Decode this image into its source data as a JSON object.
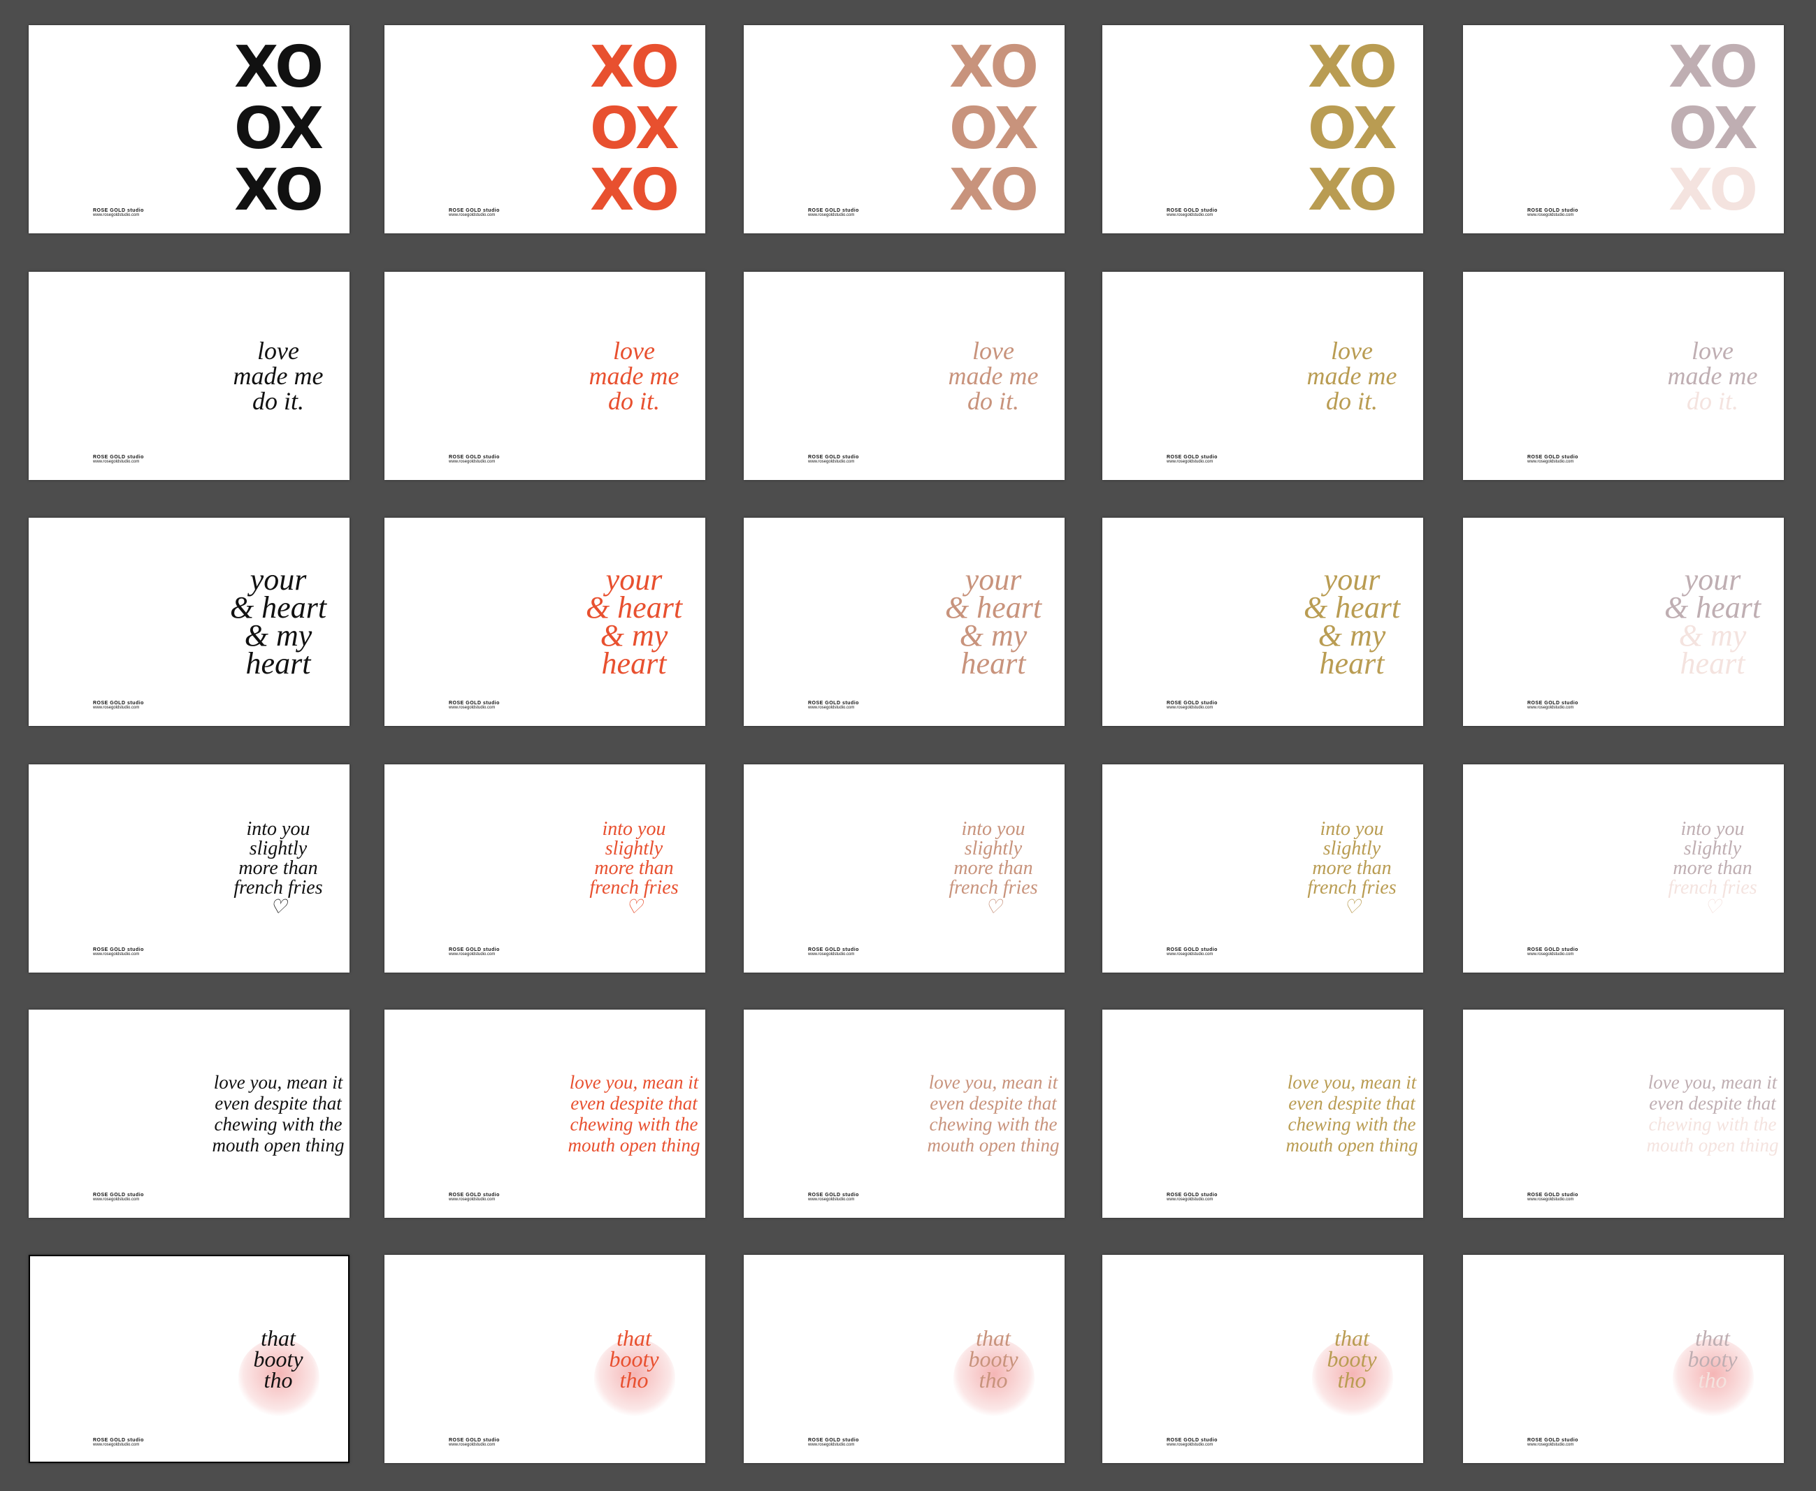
{
  "designs": [
    {
      "lines": [
        "XO",
        "OX",
        "XO"
      ]
    },
    {
      "lines": [
        "love",
        "made me",
        "do it."
      ]
    },
    {
      "lines": [
        "your",
        "& heart",
        "& my",
        "heart"
      ]
    },
    {
      "lines": [
        "into you",
        "slightly",
        "more than",
        "french fries",
        "♡"
      ]
    },
    {
      "lines": [
        "love you, mean it",
        "even despite that",
        "chewing with the",
        "mouth open thing"
      ]
    },
    {
      "lines": [
        "that",
        "booty",
        "tho"
      ]
    }
  ],
  "footer": {
    "brand": "ROSE GOLD studio",
    "url": "www.rosegoldstudio.com"
  }
}
